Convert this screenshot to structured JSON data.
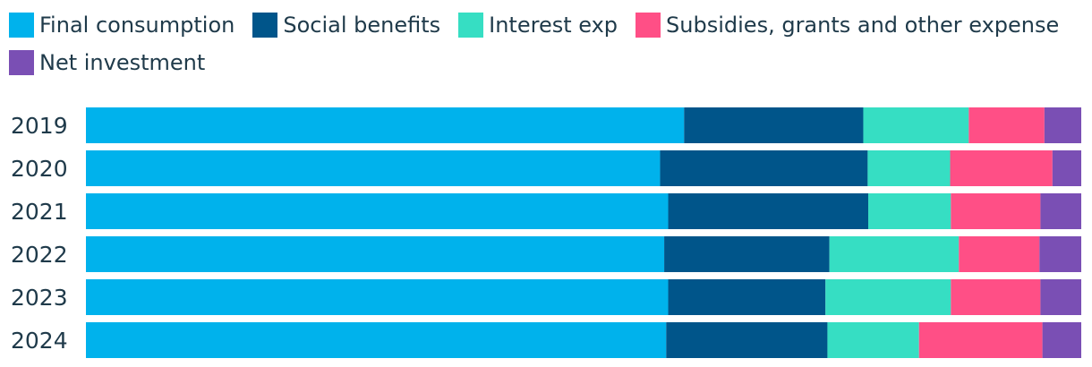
{
  "chart_data": {
    "type": "bar",
    "orientation": "horizontal",
    "stacked": true,
    "normalized": true,
    "legend_position": "top",
    "grid": false,
    "xlim": [
      0,
      100
    ],
    "title": "",
    "xlabel": "",
    "ylabel": "",
    "categories": [
      "2019",
      "2020",
      "2021",
      "2022",
      "2023",
      "2024"
    ],
    "series": [
      {
        "name": "Final consumption",
        "color": "#00b2ec",
        "values": [
          60.1,
          57.8,
          58.5,
          58.1,
          58.5,
          58.3
        ]
      },
      {
        "name": "Social benefits",
        "color": "#00558a",
        "values": [
          18.0,
          20.9,
          20.1,
          16.6,
          15.8,
          16.2
        ]
      },
      {
        "name": "Interest exp",
        "color": "#36dec3",
        "values": [
          10.6,
          8.3,
          8.3,
          13.0,
          12.6,
          9.2
        ]
      },
      {
        "name": "Subsidies, grants and other expense",
        "color": "#ff4f86",
        "values": [
          7.6,
          10.3,
          9.0,
          8.1,
          9.0,
          12.4
        ]
      },
      {
        "name": "Net investment",
        "color": "#7a4fb4",
        "values": [
          3.7,
          2.9,
          4.1,
          4.2,
          4.1,
          3.9
        ]
      }
    ]
  }
}
